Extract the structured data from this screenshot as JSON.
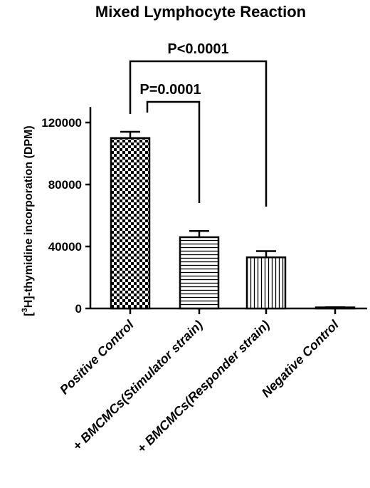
{
  "chart_data": {
    "type": "bar",
    "title": "Mixed Lymphocyte Reaction",
    "ylabel": {
      "prefix": "[",
      "superscript": "3",
      "suffix": "H]-thymidine incorporation (DPM)"
    },
    "xlabel": "",
    "ylim": [
      0,
      130000
    ],
    "yticks": [
      0,
      40000,
      80000,
      120000
    ],
    "ytick_labels": [
      "0",
      "40000",
      "80000",
      "120000"
    ],
    "grid": false,
    "categories": [
      "Positive Control",
      "+ BMCMCs(Stimulator strain)",
      "+ BMCMCs(Responder strain)",
      "Negative Control"
    ],
    "values": [
      110000,
      46000,
      33000,
      500
    ],
    "errors": [
      4000,
      4000,
      4000,
      300
    ],
    "patterns": [
      "checker",
      "horizontal",
      "vertical",
      "none"
    ],
    "annotations": [
      {
        "text": "P<0.0001",
        "from": 0,
        "to": 2
      },
      {
        "text": "P=0.0001",
        "from": 0,
        "to": 1
      }
    ]
  }
}
